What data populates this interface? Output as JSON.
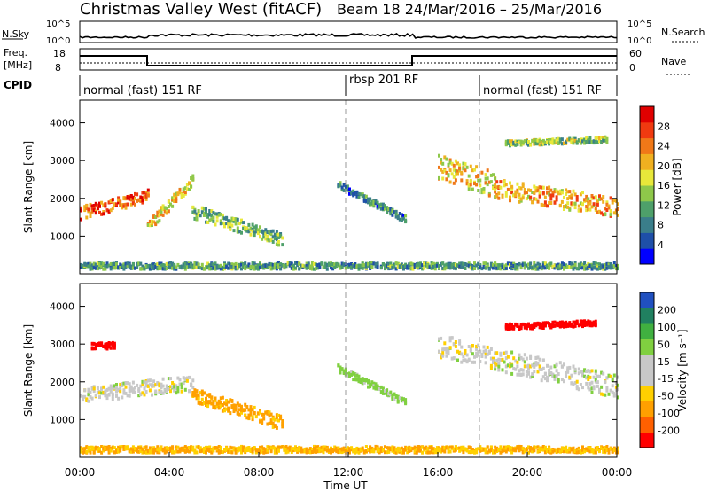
{
  "header": {
    "title": "Christmas Valley West (fitACF)",
    "beam_date": "Beam 18  24/Mar/2016 – 25/Mar/2016"
  },
  "strips": {
    "nsky_label": "N.Sky",
    "nsky_ticks": [
      "10^5",
      "10^0"
    ],
    "nsearch_label": "N.Search",
    "nsearch_ticks": [
      "10^5",
      "10^0"
    ],
    "freq_label": "Freq.",
    "freq_unit": "[MHz]",
    "freq_ticks": [
      "18",
      "8"
    ],
    "nave_label": "Nave",
    "nave_ticks": [
      "60",
      "0"
    ],
    "cpid_label": "CPID",
    "modes": [
      {
        "label": "normal (fast) 151 RF"
      },
      {
        "label": "rbsp 201 RF"
      },
      {
        "label": "normal (fast) 151 RF"
      }
    ]
  },
  "colorbars": {
    "power": {
      "title": "Power [dB]",
      "ticks": [
        "28",
        "24",
        "20",
        "16",
        "12",
        "8",
        "4"
      ],
      "colors": [
        "#0000ff",
        "#1e4fa8",
        "#3a7e8a",
        "#4ea06a",
        "#8ec84a",
        "#e8e83a",
        "#f0b020",
        "#f07818",
        "#f03a10",
        "#e00000"
      ]
    },
    "velocity": {
      "title": "Velocity [m s⁻¹]",
      "ticks": [
        "200",
        "100",
        "50",
        "15",
        "-15",
        "-50",
        "-100",
        "-200"
      ],
      "colors": [
        "#ff0000",
        "#ff6000",
        "#ffa000",
        "#ffd000",
        "#c8c8c8",
        "#c8c8c8",
        "#80d040",
        "#40b040",
        "#208060",
        "#2050c0"
      ]
    }
  },
  "chart_data": [
    {
      "type": "heatmap",
      "name": "power",
      "ylabel": "Slant Range [km]",
      "yticks": [
        "4000",
        "3000",
        "2000",
        "1000"
      ],
      "ylim": [
        0,
        4600
      ],
      "xlim": [
        "00:00",
        "24:00"
      ],
      "clim": [
        0,
        30
      ],
      "echo_regions": [
        {
          "t": [
            0.0,
            3.0
          ],
          "range_center_km": [
            1650,
            2100
          ],
          "halfwidth_km": 170,
          "db": 24
        },
        {
          "t": [
            3.0,
            5.0
          ],
          "range_center_km": [
            1300,
            2500
          ],
          "halfwidth_km": 150,
          "db": 18
        },
        {
          "t": [
            5.0,
            9.0
          ],
          "range_center_km": [
            1700,
            950
          ],
          "halfwidth_km": 180,
          "db": 12
        },
        {
          "t": [
            11.5,
            14.5
          ],
          "range_center_km": [
            2400,
            1500
          ],
          "halfwidth_km": 90,
          "db": 8
        },
        {
          "t": [
            16.0,
            18.5
          ],
          "range_center_km": [
            2900,
            2400
          ],
          "halfwidth_km": 350,
          "db": 18
        },
        {
          "t": [
            18.5,
            24.0
          ],
          "range_center_km": [
            2300,
            1800
          ],
          "halfwidth_km": 260,
          "db": 20
        },
        {
          "t": [
            19.0,
            23.5
          ],
          "range_center_km": [
            3500,
            3600
          ],
          "halfwidth_km": 70,
          "db": 14
        },
        {
          "t": [
            0.0,
            24.0
          ],
          "range_center_km": [
            250,
            250
          ],
          "halfwidth_km": 80,
          "db": 10
        }
      ]
    },
    {
      "type": "heatmap",
      "name": "velocity",
      "xlabel": "Time UT",
      "ylabel": "Slant Range [km]",
      "yticks": [
        "4000",
        "3000",
        "2000",
        "1000"
      ],
      "ylim": [
        0,
        4600
      ],
      "xlim": [
        "00:00",
        "24:00"
      ],
      "clim": [
        -250,
        250
      ],
      "xticks": [
        "00:00",
        "04:00",
        "08:00",
        "12:00",
        "16:00",
        "20:00",
        "00:00"
      ],
      "echo_regions": [
        {
          "t": [
            0.0,
            5.0
          ],
          "range_center_km": [
            1700,
            2000
          ],
          "halfwidth_km": 200,
          "vel": 0
        },
        {
          "t": [
            5.0,
            9.0
          ],
          "range_center_km": [
            1700,
            950
          ],
          "halfwidth_km": 180,
          "vel": -60
        },
        {
          "t": [
            11.5,
            14.5
          ],
          "range_center_km": [
            2400,
            1500
          ],
          "halfwidth_km": 90,
          "vel": 30
        },
        {
          "t": [
            16.0,
            24.0
          ],
          "range_center_km": [
            3000,
            1900
          ],
          "halfwidth_km": 300,
          "vel": 0
        },
        {
          "t": [
            19.0,
            23.0
          ],
          "range_center_km": [
            3500,
            3600
          ],
          "halfwidth_km": 70,
          "vel": -220
        },
        {
          "t": [
            0.5,
            1.5
          ],
          "range_center_km": [
            3000,
            3000
          ],
          "halfwidth_km": 80,
          "vel": -220
        },
        {
          "t": [
            0.0,
            24.0
          ],
          "range_center_km": [
            250,
            250
          ],
          "halfwidth_km": 80,
          "vel": -50
        }
      ]
    }
  ]
}
